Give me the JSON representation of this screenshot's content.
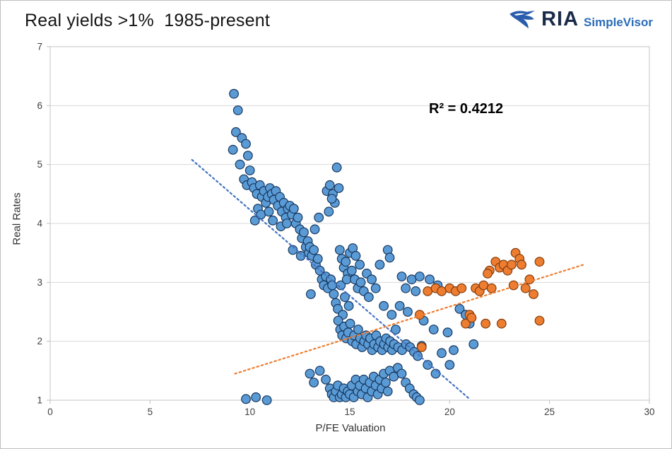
{
  "header": {
    "title": "Real yields >1%  1985-present"
  },
  "logo": {
    "brand": "RIA",
    "product": "SimpleVisor",
    "icon": "eagle-icon",
    "icon_color": "#2b5dad"
  },
  "chart_data": {
    "type": "scatter",
    "title": "Real yields >1%  1985-present",
    "xlabel": "P/FE Valuation",
    "ylabel": "Real Rates",
    "xlim": [
      0,
      30
    ],
    "ylim": [
      1,
      7
    ],
    "xticks": [
      0,
      5,
      10,
      15,
      20,
      25,
      30
    ],
    "yticks": [
      1,
      2,
      3,
      4,
      5,
      6,
      7
    ],
    "grid": "horizontal",
    "annotation": "R² = 0.4212",
    "legend": "none",
    "series": [
      {
        "name": "blue-markers",
        "color": "#5B9BD5",
        "edge": "#17375E",
        "points": [
          [
            9.2,
            6.2
          ],
          [
            9.4,
            5.92
          ],
          [
            9.3,
            5.55
          ],
          [
            9.6,
            5.45
          ],
          [
            9.15,
            5.25
          ],
          [
            9.8,
            5.35
          ],
          [
            9.9,
            5.15
          ],
          [
            9.5,
            5.0
          ],
          [
            10.0,
            4.9
          ],
          [
            9.7,
            4.75
          ],
          [
            9.85,
            4.65
          ],
          [
            10.1,
            4.7
          ],
          [
            10.2,
            4.6
          ],
          [
            10.35,
            4.5
          ],
          [
            10.5,
            4.65
          ],
          [
            10.6,
            4.45
          ],
          [
            10.7,
            4.55
          ],
          [
            10.8,
            4.35
          ],
          [
            10.4,
            4.25
          ],
          [
            10.9,
            4.45
          ],
          [
            11.0,
            4.6
          ],
          [
            10.25,
            4.05
          ],
          [
            10.55,
            4.15
          ],
          [
            10.95,
            4.2
          ],
          [
            11.1,
            4.5
          ],
          [
            11.2,
            4.4
          ],
          [
            11.3,
            4.55
          ],
          [
            11.4,
            4.3
          ],
          [
            11.5,
            4.45
          ],
          [
            11.6,
            4.2
          ],
          [
            11.7,
            4.35
          ],
          [
            11.8,
            4.1
          ],
          [
            11.9,
            4.25
          ],
          [
            11.15,
            4.05
          ],
          [
            11.55,
            3.95
          ],
          [
            11.85,
            4.0
          ],
          [
            12.0,
            4.3
          ],
          [
            12.1,
            4.15
          ],
          [
            12.2,
            4.25
          ],
          [
            12.3,
            4.0
          ],
          [
            12.4,
            4.1
          ],
          [
            12.5,
            3.9
          ],
          [
            12.6,
            3.75
          ],
          [
            12.7,
            3.85
          ],
          [
            12.8,
            3.6
          ],
          [
            12.9,
            3.7
          ],
          [
            12.15,
            3.55
          ],
          [
            12.55,
            3.45
          ],
          [
            12.95,
            3.5
          ],
          [
            13.0,
            3.6
          ],
          [
            13.1,
            3.45
          ],
          [
            13.2,
            3.55
          ],
          [
            13.3,
            3.3
          ],
          [
            13.4,
            3.4
          ],
          [
            13.5,
            3.2
          ],
          [
            13.6,
            3.05
          ],
          [
            13.7,
            2.95
          ],
          [
            13.8,
            3.1
          ],
          [
            13.9,
            2.9
          ],
          [
            13.05,
            2.8
          ],
          [
            13.45,
            4.1
          ],
          [
            13.25,
            3.9
          ],
          [
            13.85,
            4.55
          ],
          [
            14.0,
            4.65
          ],
          [
            14.15,
            4.5
          ],
          [
            14.35,
            4.95
          ],
          [
            14.25,
            4.35
          ],
          [
            13.95,
            4.2
          ],
          [
            14.45,
            4.6
          ],
          [
            14.1,
            4.42
          ],
          [
            14.05,
            3.05
          ],
          [
            14.12,
            2.95
          ],
          [
            14.2,
            2.8
          ],
          [
            14.3,
            2.65
          ],
          [
            14.4,
            2.55
          ],
          [
            14.5,
            3.55
          ],
          [
            14.6,
            3.4
          ],
          [
            14.7,
            3.25
          ],
          [
            14.8,
            3.35
          ],
          [
            14.9,
            3.15
          ],
          [
            14.55,
            2.95
          ],
          [
            14.75,
            2.75
          ],
          [
            14.95,
            2.6
          ],
          [
            14.65,
            2.45
          ],
          [
            14.85,
            3.05
          ],
          [
            15.0,
            3.5
          ],
          [
            15.15,
            3.58
          ],
          [
            15.3,
            3.45
          ],
          [
            15.1,
            3.2
          ],
          [
            15.25,
            3.05
          ],
          [
            15.4,
            2.9
          ],
          [
            15.55,
            3.0
          ],
          [
            15.7,
            2.85
          ],
          [
            15.5,
            3.3
          ],
          [
            15.85,
            3.15
          ],
          [
            16.9,
            3.55
          ],
          [
            17.0,
            3.42
          ],
          [
            16.5,
            3.3
          ],
          [
            17.8,
            2.9
          ],
          [
            18.1,
            3.05
          ],
          [
            18.5,
            3.1
          ],
          [
            19.0,
            3.05
          ],
          [
            19.4,
            2.95
          ],
          [
            14.42,
            2.35
          ],
          [
            14.52,
            2.2
          ],
          [
            14.62,
            2.1
          ],
          [
            14.72,
            2.25
          ],
          [
            14.82,
            2.05
          ],
          [
            14.92,
            2.15
          ],
          [
            15.02,
            2.3
          ],
          [
            15.12,
            2.0
          ],
          [
            15.22,
            2.1
          ],
          [
            15.32,
            1.95
          ],
          [
            15.42,
            2.2
          ],
          [
            15.52,
            2.05
          ],
          [
            15.62,
            1.9
          ],
          [
            15.72,
            2.0
          ],
          [
            15.82,
            2.1
          ],
          [
            15.92,
            1.95
          ],
          [
            16.02,
            2.05
          ],
          [
            16.12,
            1.85
          ],
          [
            16.22,
            1.95
          ],
          [
            16.32,
            2.1
          ],
          [
            16.42,
            1.9
          ],
          [
            16.52,
            2.0
          ],
          [
            16.62,
            1.85
          ],
          [
            16.72,
            1.95
          ],
          [
            16.82,
            2.05
          ],
          [
            16.92,
            1.9
          ],
          [
            17.02,
            2.0
          ],
          [
            17.12,
            1.85
          ],
          [
            17.22,
            1.95
          ],
          [
            17.42,
            1.9
          ],
          [
            17.62,
            1.85
          ],
          [
            17.82,
            1.95
          ],
          [
            18.02,
            1.9
          ],
          [
            18.22,
            1.82
          ],
          [
            13.0,
            1.45
          ],
          [
            13.2,
            1.3
          ],
          [
            13.5,
            1.5
          ],
          [
            13.8,
            1.35
          ],
          [
            14.0,
            1.2
          ],
          [
            14.1,
            1.1
          ],
          [
            14.2,
            1.05
          ],
          [
            14.3,
            1.15
          ],
          [
            14.4,
            1.25
          ],
          [
            14.5,
            1.05
          ],
          [
            14.6,
            1.1
          ],
          [
            14.7,
            1.2
          ],
          [
            14.8,
            1.05
          ],
          [
            14.9,
            1.15
          ],
          [
            15.0,
            1.1
          ],
          [
            15.1,
            1.25
          ],
          [
            15.2,
            1.05
          ],
          [
            15.3,
            1.35
          ],
          [
            15.4,
            1.15
          ],
          [
            15.5,
            1.25
          ],
          [
            15.6,
            1.1
          ],
          [
            15.7,
            1.35
          ],
          [
            15.8,
            1.2
          ],
          [
            15.9,
            1.05
          ],
          [
            16.0,
            1.3
          ],
          [
            16.1,
            1.15
          ],
          [
            16.2,
            1.4
          ],
          [
            16.3,
            1.25
          ],
          [
            16.4,
            1.1
          ],
          [
            16.5,
            1.35
          ],
          [
            16.6,
            1.2
          ],
          [
            16.7,
            1.45
          ],
          [
            16.8,
            1.3
          ],
          [
            16.9,
            1.15
          ],
          [
            17.0,
            1.5
          ],
          [
            17.2,
            1.4
          ],
          [
            17.4,
            1.55
          ],
          [
            17.6,
            1.45
          ],
          [
            17.8,
            1.3
          ],
          [
            18.0,
            1.2
          ],
          [
            18.2,
            1.1
          ],
          [
            18.35,
            1.05
          ],
          [
            18.5,
            1.0
          ],
          [
            10.3,
            1.05
          ],
          [
            10.85,
            1.0
          ],
          [
            9.8,
            1.02
          ],
          [
            18.7,
            2.35
          ],
          [
            19.2,
            2.2
          ],
          [
            19.9,
            2.15
          ],
          [
            20.2,
            1.85
          ],
          [
            21.2,
            1.95
          ],
          [
            20.5,
            2.55
          ],
          [
            20.8,
            2.45
          ],
          [
            21.0,
            2.3
          ],
          [
            18.4,
            1.75
          ],
          [
            18.9,
            1.6
          ],
          [
            19.3,
            1.45
          ],
          [
            18.6,
            1.92
          ],
          [
            17.5,
            2.6
          ],
          [
            17.9,
            2.5
          ],
          [
            18.3,
            2.85
          ],
          [
            17.6,
            3.1
          ],
          [
            16.3,
            2.9
          ],
          [
            16.1,
            3.05
          ],
          [
            15.95,
            2.75
          ],
          [
            16.7,
            2.6
          ],
          [
            17.1,
            2.45
          ],
          [
            17.3,
            2.2
          ],
          [
            19.6,
            1.8
          ],
          [
            20.0,
            1.6
          ]
        ]
      },
      {
        "name": "orange-markers",
        "color": "#ED7D31",
        "edge": "#843C0C",
        "points": [
          [
            18.5,
            2.45
          ],
          [
            18.6,
            1.9
          ],
          [
            18.9,
            2.85
          ],
          [
            19.3,
            2.9
          ],
          [
            19.6,
            2.85
          ],
          [
            20.0,
            2.9
          ],
          [
            20.3,
            2.85
          ],
          [
            20.6,
            2.9
          ],
          [
            20.8,
            2.3
          ],
          [
            21.0,
            2.45
          ],
          [
            21.1,
            2.4
          ],
          [
            21.3,
            2.9
          ],
          [
            21.5,
            2.85
          ],
          [
            21.7,
            2.95
          ],
          [
            21.8,
            2.3
          ],
          [
            22.0,
            3.2
          ],
          [
            22.1,
            2.9
          ],
          [
            22.3,
            3.35
          ],
          [
            22.5,
            3.25
          ],
          [
            22.6,
            2.3
          ],
          [
            22.7,
            3.3
          ],
          [
            22.9,
            3.2
          ],
          [
            23.1,
            3.3
          ],
          [
            23.3,
            3.5
          ],
          [
            23.5,
            3.4
          ],
          [
            23.6,
            3.3
          ],
          [
            23.8,
            2.9
          ],
          [
            24.0,
            3.05
          ],
          [
            24.2,
            2.8
          ],
          [
            24.5,
            3.35
          ],
          [
            24.5,
            2.35
          ],
          [
            23.2,
            2.95
          ],
          [
            21.9,
            3.15
          ]
        ]
      }
    ],
    "trendlines": [
      {
        "name": "blue-trendline",
        "color": "#4472C4",
        "from": [
          7.1,
          5.08
        ],
        "to": [
          21.0,
          1.02
        ]
      },
      {
        "name": "orange-trendline",
        "color": "#ED7D31",
        "from": [
          9.25,
          1.45
        ],
        "to": [
          26.8,
          3.31
        ]
      }
    ]
  }
}
